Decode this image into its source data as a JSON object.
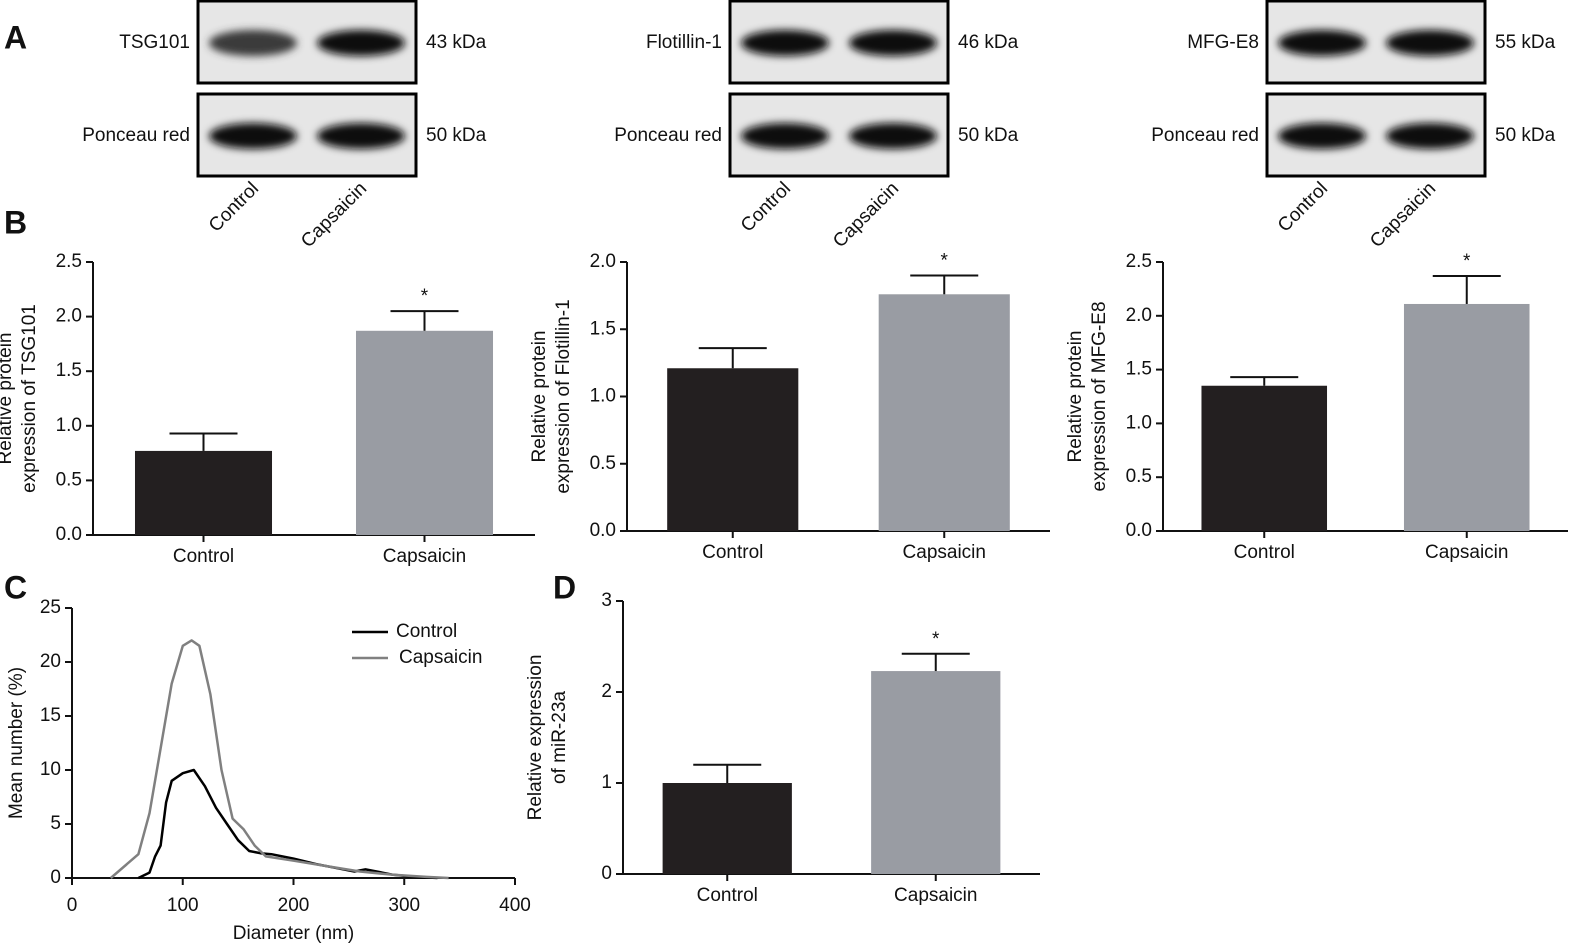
{
  "panel_labels": [
    "A",
    "B",
    "C",
    "D"
  ],
  "blots": [
    {
      "target": "TSG101",
      "target_kda": "43 kDa",
      "loading": "Ponceau red",
      "loading_kda": "50 kDa",
      "lanes": [
        "Control",
        "Capsaicin"
      ]
    },
    {
      "target": "Flotillin-1",
      "target_kda": "46 kDa",
      "loading": "Ponceau red",
      "loading_kda": "50 kDa",
      "lanes": [
        "Control",
        "Capsaicin"
      ]
    },
    {
      "target": "MFG-E8",
      "target_kda": "55 kDa",
      "loading": "Ponceau red",
      "loading_kda": "50 kDa",
      "lanes": [
        "Control",
        "Capsaicin"
      ]
    }
  ],
  "chart_data": [
    {
      "type": "bar",
      "ylabel": [
        "Relative protein",
        "expression of TSG101"
      ],
      "categories": [
        "Control",
        "Capsaicin"
      ],
      "values": [
        0.77,
        1.87
      ],
      "errors": [
        0.16,
        0.18
      ],
      "significance": [
        null,
        "*"
      ],
      "colors": [
        "#231f20",
        "#999ca3"
      ],
      "ylim": [
        0,
        2.5
      ],
      "yticks": [
        {
          "value": 0,
          "label": "0.0"
        },
        0.5,
        {
          "value": 1,
          "label": "1.0"
        },
        1.5,
        {
          "value": 2,
          "label": "2.0"
        },
        2.5
      ]
    },
    {
      "type": "bar",
      "ylabel": [
        "Relative protein",
        "expression of Flotillin-1"
      ],
      "categories": [
        "Control",
        "Capsaicin"
      ],
      "values": [
        1.21,
        1.76
      ],
      "errors": [
        0.15,
        0.14
      ],
      "significance": [
        null,
        "*"
      ],
      "colors": [
        "#231f20",
        "#999ca3"
      ],
      "ylim": [
        0,
        2
      ],
      "yticks": [
        {
          "value": 0,
          "label": "0.0"
        },
        0.5,
        {
          "value": 1,
          "label": "1.0"
        },
        1.5,
        {
          "value": 2,
          "label": "2.0"
        }
      ]
    },
    {
      "type": "bar",
      "ylabel": [
        "Relative protein",
        "expression of MFG-E8"
      ],
      "categories": [
        "Control",
        "Capsaicin"
      ],
      "values": [
        1.35,
        2.11
      ],
      "errors": [
        0.08,
        0.26
      ],
      "significance": [
        null,
        "*"
      ],
      "colors": [
        "#231f20",
        "#999ca3"
      ],
      "ylim": [
        0,
        2.5
      ],
      "yticks": [
        {
          "value": 0,
          "label": "0.0"
        },
        0.5,
        {
          "value": 1,
          "label": "1.0"
        },
        1.5,
        {
          "value": 2,
          "label": "2.0"
        },
        2.5
      ]
    },
    {
      "type": "line",
      "xlabel": "Diameter (nm)",
      "ylabel": [
        "Mean number (%)"
      ],
      "legend": "upper right",
      "xlim": [
        0,
        400
      ],
      "xticks": [
        0,
        100,
        200,
        300,
        400
      ],
      "ylim": [
        0,
        25
      ],
      "yticks": [
        0,
        5,
        10,
        15,
        20,
        25
      ],
      "series": [
        {
          "name": "Control",
          "color": "#000000",
          "x": [
            60,
            70,
            75,
            80,
            85,
            90,
            100,
            110,
            120,
            130,
            140,
            150,
            160,
            170,
            180,
            200,
            220,
            240,
            255,
            265,
            275,
            290,
            310,
            330
          ],
          "values": [
            0,
            0.5,
            2,
            3,
            7,
            9,
            9.7,
            10,
            8.5,
            6.5,
            5,
            3.5,
            2.5,
            2.3,
            2.2,
            1.8,
            1.3,
            0.9,
            0.6,
            0.8,
            0.6,
            0.3,
            0.1,
            0
          ]
        },
        {
          "name": "Capsaicin",
          "color": "#808080",
          "x": [
            35,
            60,
            70,
            80,
            90,
            100,
            108,
            115,
            125,
            135,
            145,
            155,
            165,
            175,
            200,
            230,
            260,
            290,
            320,
            340
          ],
          "values": [
            0,
            2.2,
            6,
            12,
            18,
            21.5,
            22,
            21.5,
            17,
            10,
            5.5,
            4.5,
            3,
            2,
            1.6,
            1.1,
            0.6,
            0.3,
            0.1,
            0
          ]
        }
      ]
    },
    {
      "type": "bar",
      "ylabel": [
        "Relative expression",
        "of miR-23a"
      ],
      "categories": [
        "Control",
        "Capsaicin"
      ],
      "values": [
        1,
        2.23
      ],
      "errors": [
        0.2,
        0.19
      ],
      "significance": [
        null,
        "*"
      ],
      "colors": [
        "#231f20",
        "#999ca3"
      ],
      "ylim": [
        0,
        3
      ],
      "yticks": [
        0,
        1,
        2,
        3
      ]
    }
  ]
}
